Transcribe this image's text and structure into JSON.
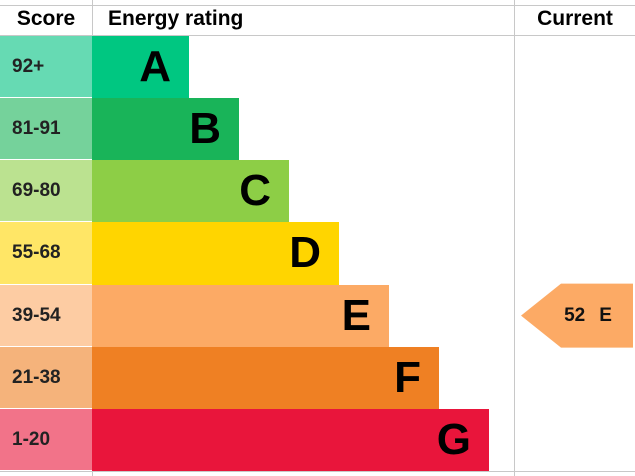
{
  "headers": {
    "score": "Score",
    "rating": "Energy rating",
    "current": "Current"
  },
  "chart_data": {
    "type": "bar",
    "categories": [
      "A",
      "B",
      "C",
      "D",
      "E",
      "F",
      "G"
    ],
    "score_ranges": [
      "92+",
      "81-91",
      "69-80",
      "55-68",
      "39-54",
      "21-38",
      "1-20"
    ],
    "bands": [
      {
        "letter": "A",
        "score_range": "92+",
        "bar_color": "#00c781",
        "score_color": "#66dab3"
      },
      {
        "letter": "B",
        "score_range": "81-91",
        "bar_color": "#19b459",
        "score_color": "#75d29b"
      },
      {
        "letter": "C",
        "score_range": "69-80",
        "bar_color": "#8dce46",
        "score_color": "#bbe290"
      },
      {
        "letter": "D",
        "score_range": "55-68",
        "bar_color": "#ffd500",
        "score_color": "#ffe666"
      },
      {
        "letter": "E",
        "score_range": "39-54",
        "bar_color": "#fcaa65",
        "score_color": "#fdcca3"
      },
      {
        "letter": "F",
        "score_range": "21-38",
        "bar_color": "#ef8023",
        "score_color": "#f5b37b"
      },
      {
        "letter": "G",
        "score_range": "1-20",
        "bar_color": "#e9153b",
        "score_color": "#f27389"
      }
    ],
    "current": {
      "score": 52,
      "band": "E",
      "score_text": "52",
      "band_text": "E",
      "color": "#fcaa65"
    }
  }
}
